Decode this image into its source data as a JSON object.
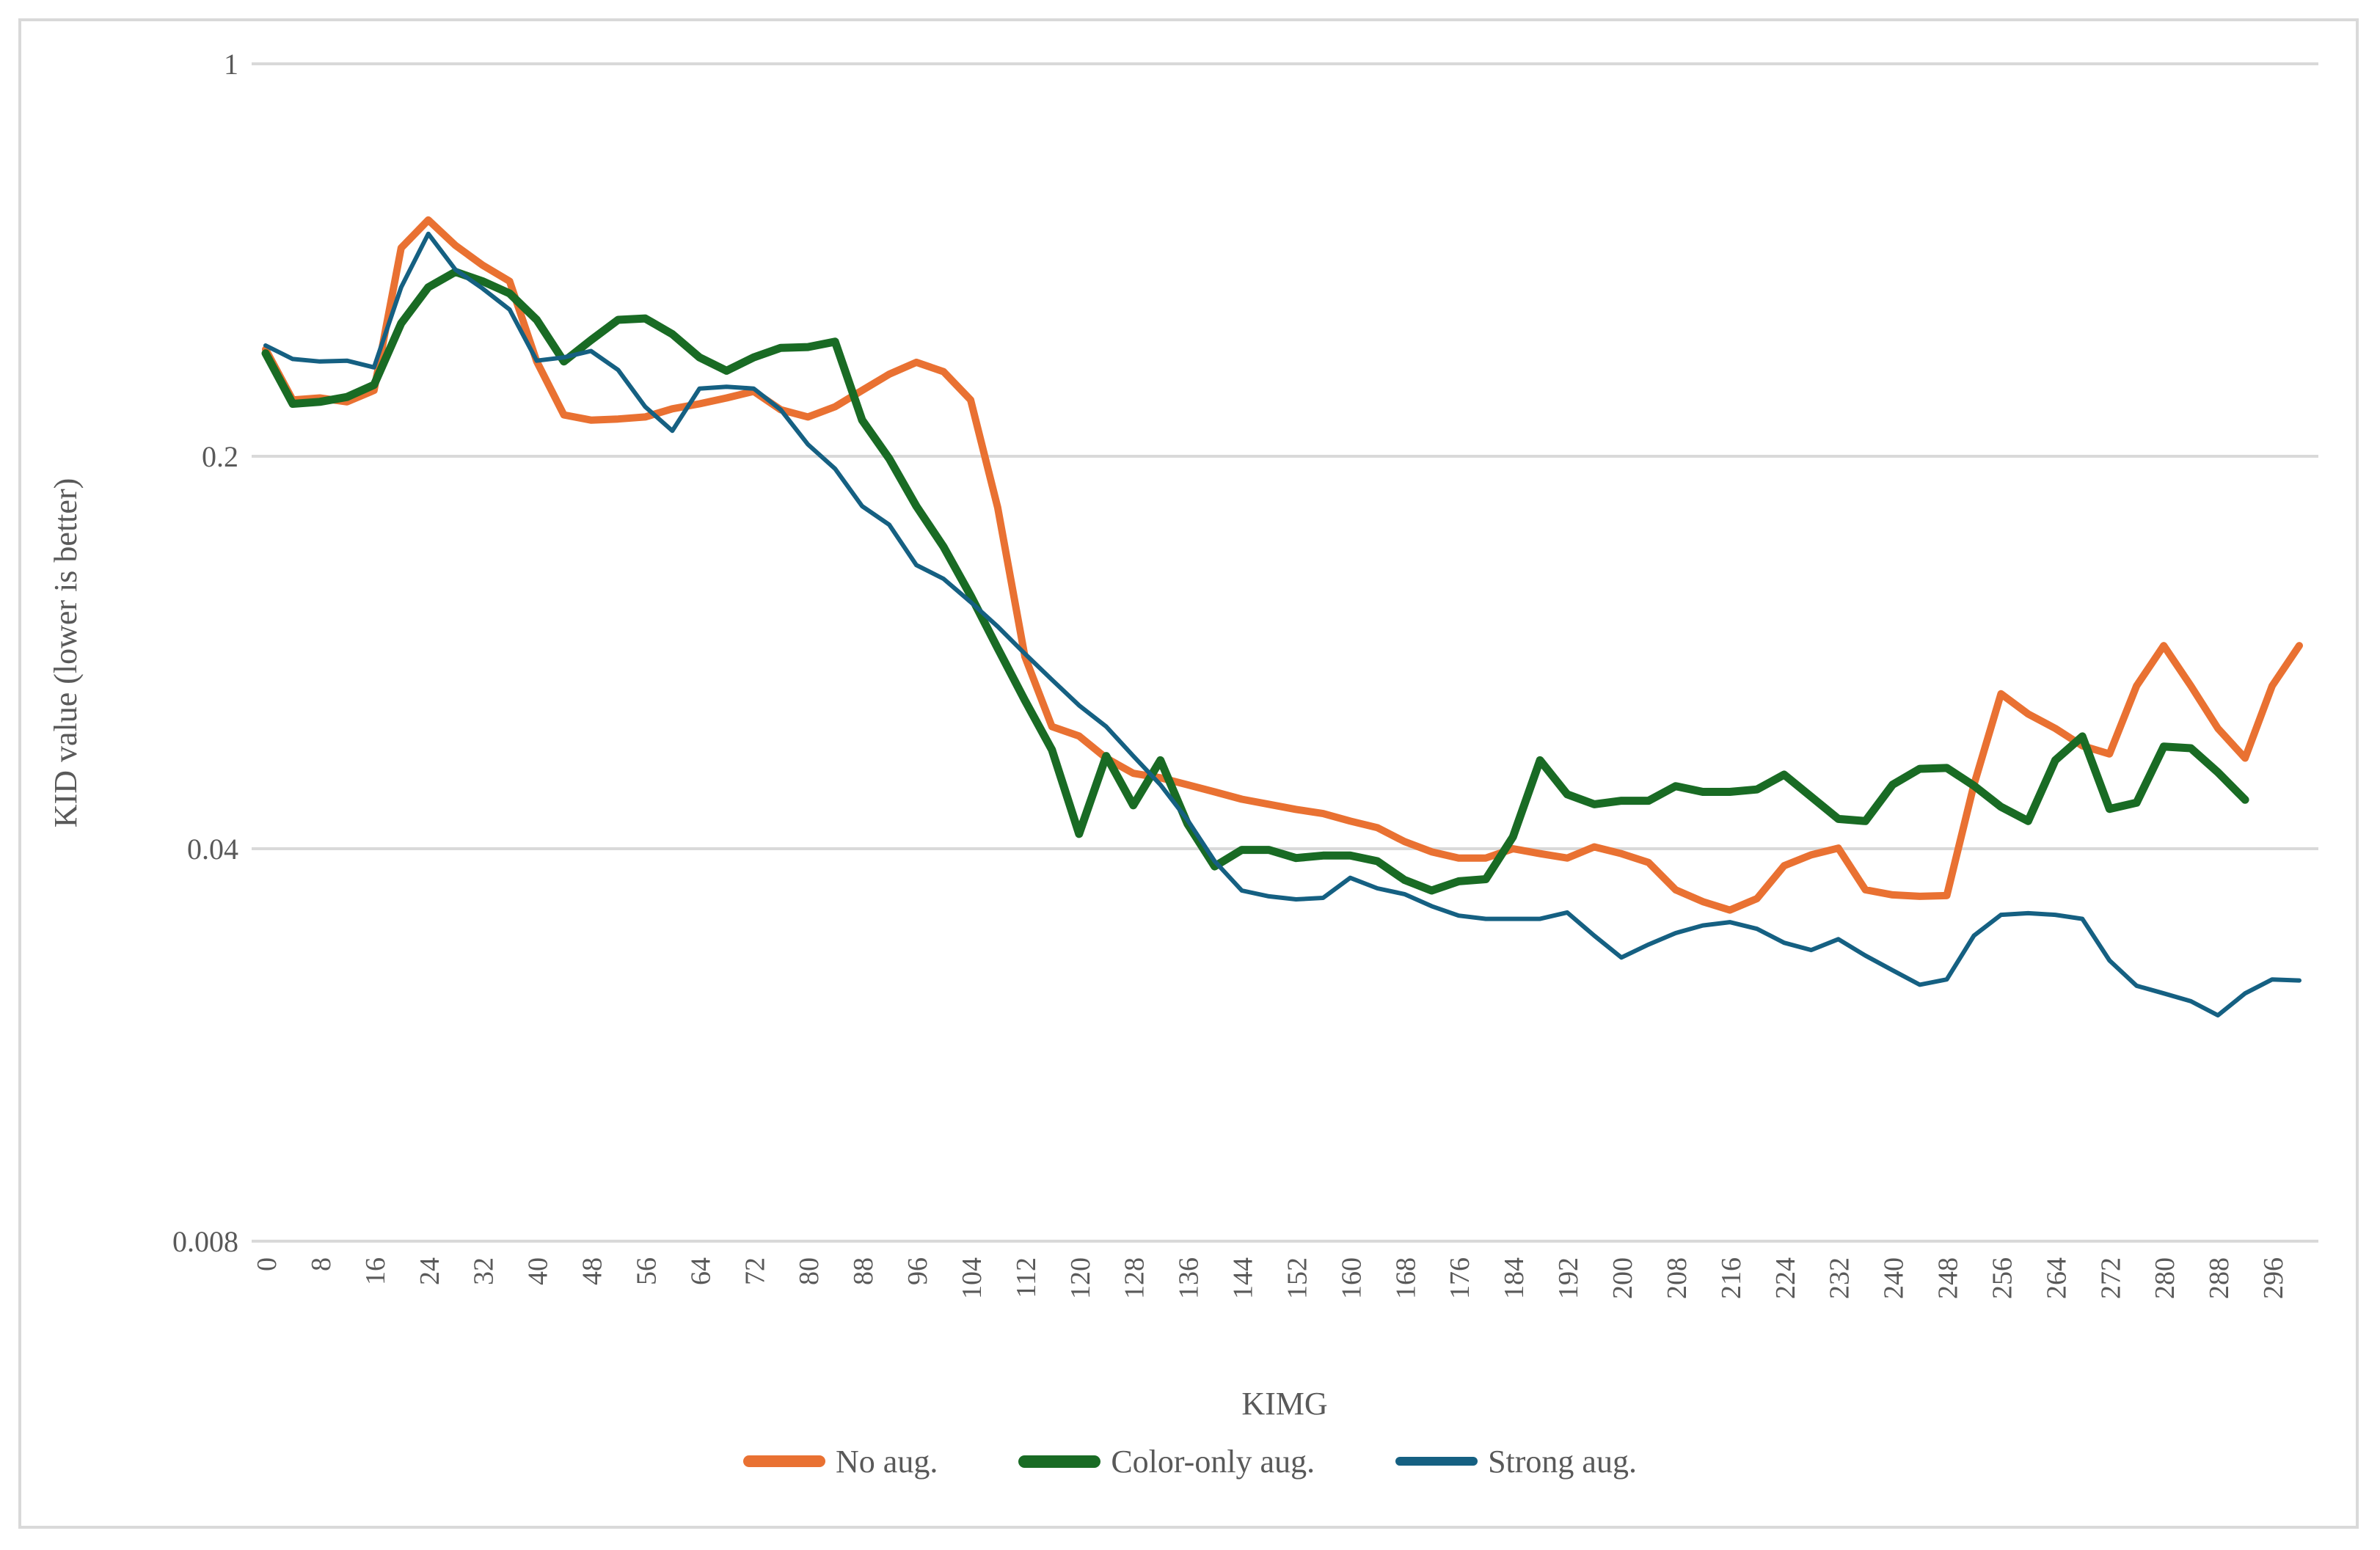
{
  "chart_data": {
    "type": "line",
    "title": "",
    "xlabel": "KIMG",
    "ylabel": "KID value (lower is better)",
    "log_scale_y": true,
    "ylim": [
      0.008,
      1
    ],
    "y_ticks": [
      1,
      0.2,
      0.04,
      0.008
    ],
    "y_tick_labels": [
      "1",
      "0.2",
      "0.04",
      "0.008"
    ],
    "x_tick_start": 0,
    "x_tick_step": 8,
    "x_tick_end": 296,
    "x_tick_labels": [
      "0",
      "8",
      "16",
      "24",
      "32",
      "40",
      "48",
      "56",
      "64",
      "72",
      "80",
      "88",
      "96",
      "104",
      "112",
      "120",
      "128",
      "136",
      "144",
      "152",
      "160",
      "168",
      "176",
      "184",
      "192",
      "200",
      "208",
      "216",
      "224",
      "232",
      "240",
      "248",
      "256",
      "264",
      "272",
      "280",
      "288",
      "296"
    ],
    "grid": "horizontal",
    "legend_position": "bottom",
    "series": [
      {
        "name": "No aug.",
        "color": "#E97132",
        "stroke_width": 10,
        "x": [
          0,
          4,
          8,
          12,
          16,
          20,
          24,
          28,
          32,
          36,
          40,
          44,
          48,
          52,
          56,
          60,
          64,
          68,
          72,
          76,
          80,
          84,
          88,
          92,
          96,
          100,
          104,
          108,
          112,
          116,
          120,
          124,
          128,
          132,
          136,
          140,
          144,
          148,
          152,
          156,
          160,
          164,
          168,
          172,
          176,
          180,
          184,
          188,
          192,
          196,
          200,
          204,
          208,
          212,
          216,
          220,
          224,
          228,
          232,
          236,
          240,
          244,
          248,
          252,
          256,
          260,
          264,
          268,
          272,
          276,
          280,
          284,
          288,
          292,
          296,
          300
        ],
        "values": [
          0.31,
          0.252,
          0.254,
          0.25,
          0.262,
          0.47,
          0.527,
          0.475,
          0.438,
          0.41,
          0.295,
          0.237,
          0.232,
          0.233,
          0.235,
          0.243,
          0.248,
          0.254,
          0.261,
          0.242,
          0.235,
          0.245,
          0.262,
          0.28,
          0.294,
          0.283,
          0.252,
          0.162,
          0.088,
          0.066,
          0.0635,
          0.058,
          0.0545,
          0.0535,
          0.052,
          0.0505,
          0.049,
          0.048,
          0.047,
          0.0462,
          0.0448,
          0.0436,
          0.0412,
          0.0395,
          0.0385,
          0.0385,
          0.04,
          0.0392,
          0.0385,
          0.0403,
          0.0392,
          0.0378,
          0.0338,
          0.0322,
          0.0311,
          0.0326,
          0.0373,
          0.039,
          0.0401,
          0.0338,
          0.0331,
          0.0329,
          0.033,
          0.052,
          0.0755,
          0.0695,
          0.0655,
          0.061,
          0.059,
          0.078,
          0.092,
          0.078,
          0.0655,
          0.058,
          0.078,
          0.092
        ]
      },
      {
        "name": "Color-only aug.",
        "color": "#196B24",
        "stroke_width": 11,
        "x": [
          0,
          4,
          8,
          12,
          16,
          20,
          24,
          28,
          32,
          36,
          40,
          44,
          48,
          52,
          56,
          60,
          64,
          68,
          72,
          76,
          80,
          84,
          88,
          92,
          96,
          100,
          104,
          108,
          112,
          116,
          120,
          124,
          128,
          132,
          136,
          140,
          144,
          148,
          152,
          156,
          160,
          164,
          168,
          172,
          176,
          180,
          184,
          188,
          192,
          196,
          200,
          204,
          208,
          212,
          216,
          220,
          224,
          228,
          232,
          236,
          240,
          244,
          248,
          252,
          256,
          260,
          264,
          268,
          272,
          276,
          280,
          284,
          288,
          292
        ],
        "values": [
          0.305,
          0.248,
          0.25,
          0.255,
          0.268,
          0.345,
          0.4,
          0.426,
          0.41,
          0.39,
          0.35,
          0.295,
          0.322,
          0.35,
          0.352,
          0.33,
          0.3,
          0.284,
          0.3,
          0.312,
          0.313,
          0.32,
          0.232,
          0.198,
          0.163,
          0.138,
          0.113,
          0.091,
          0.0735,
          0.06,
          0.0425,
          0.0585,
          0.0478,
          0.0575,
          0.0443,
          0.0372,
          0.0398,
          0.0398,
          0.0385,
          0.0389,
          0.0389,
          0.038,
          0.0352,
          0.0337,
          0.035,
          0.0353,
          0.042,
          0.0575,
          0.05,
          0.048,
          0.0487,
          0.0487,
          0.0517,
          0.0505,
          0.0505,
          0.051,
          0.0542,
          0.0495,
          0.0452,
          0.0448,
          0.052,
          0.0555,
          0.0557,
          0.0518,
          0.0475,
          0.0448,
          0.0575,
          0.0634,
          0.0471,
          0.0483,
          0.0608,
          0.0604,
          0.0547,
          0.0489
        ]
      },
      {
        "name": "Strong aug.",
        "color": "#156082",
        "stroke_width": 6,
        "x": [
          0,
          4,
          8,
          12,
          16,
          20,
          24,
          28,
          32,
          36,
          40,
          44,
          48,
          52,
          56,
          60,
          64,
          68,
          72,
          76,
          80,
          84,
          88,
          92,
          96,
          100,
          104,
          108,
          112,
          116,
          120,
          124,
          128,
          132,
          136,
          140,
          144,
          148,
          152,
          156,
          160,
          164,
          168,
          172,
          176,
          180,
          184,
          188,
          192,
          196,
          200,
          204,
          208,
          212,
          216,
          220,
          224,
          228,
          232,
          236,
          240,
          244,
          248,
          252,
          256,
          260,
          264,
          268,
          272,
          276,
          280,
          284,
          288,
          292,
          296,
          300
        ],
        "values": [
          0.315,
          0.298,
          0.295,
          0.296,
          0.288,
          0.4,
          0.498,
          0.43,
          0.398,
          0.365,
          0.296,
          0.3,
          0.308,
          0.285,
          0.245,
          0.222,
          0.264,
          0.266,
          0.264,
          0.242,
          0.21,
          0.19,
          0.163,
          0.151,
          0.128,
          0.121,
          0.11,
          0.0995,
          0.089,
          0.08,
          0.072,
          0.066,
          0.0585,
          0.052,
          0.045,
          0.038,
          0.0337,
          0.0329,
          0.0325,
          0.0327,
          0.0355,
          0.034,
          0.0332,
          0.0316,
          0.0304,
          0.03,
          0.03,
          0.03,
          0.0308,
          0.028,
          0.0256,
          0.027,
          0.0283,
          0.0292,
          0.0296,
          0.0288,
          0.0272,
          0.0264,
          0.0276,
          0.0258,
          0.0243,
          0.0229,
          0.0234,
          0.028,
          0.0305,
          0.0307,
          0.0305,
          0.03,
          0.0253,
          0.0228,
          0.0221,
          0.0214,
          0.0202,
          0.0221,
          0.0234,
          0.0233
        ]
      }
    ]
  },
  "style": {
    "grid_color": "#d9d9d9",
    "text_color": "#595959",
    "background": "#ffffff"
  }
}
